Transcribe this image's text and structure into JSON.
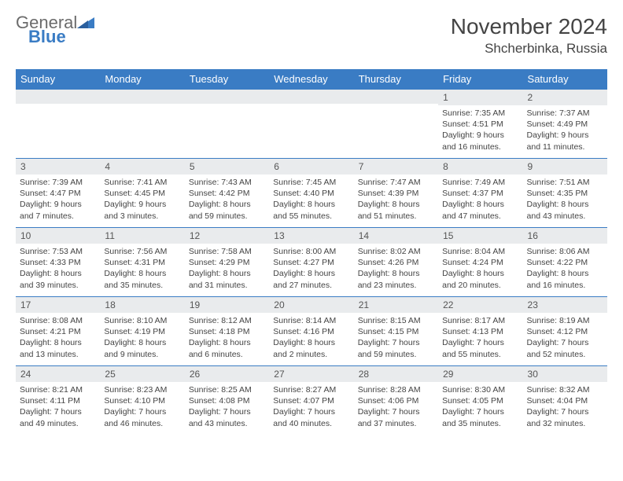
{
  "brand": {
    "word1": "General",
    "word2": "Blue"
  },
  "title": "November 2024",
  "location": "Shcherbinka, Russia",
  "colors": {
    "header_bg": "#3a7cc4",
    "header_text": "#ffffff",
    "daynum_bg": "#e9ebed",
    "border": "#3a7cc4",
    "logo_gray": "#6b6b6b",
    "logo_blue": "#3a7cc4"
  },
  "day_headers": [
    "Sunday",
    "Monday",
    "Tuesday",
    "Wednesday",
    "Thursday",
    "Friday",
    "Saturday"
  ],
  "weeks": [
    [
      {
        "n": "",
        "lines": []
      },
      {
        "n": "",
        "lines": []
      },
      {
        "n": "",
        "lines": []
      },
      {
        "n": "",
        "lines": []
      },
      {
        "n": "",
        "lines": []
      },
      {
        "n": "1",
        "lines": [
          "Sunrise: 7:35 AM",
          "Sunset: 4:51 PM",
          "Daylight: 9 hours",
          "and 16 minutes."
        ]
      },
      {
        "n": "2",
        "lines": [
          "Sunrise: 7:37 AM",
          "Sunset: 4:49 PM",
          "Daylight: 9 hours",
          "and 11 minutes."
        ]
      }
    ],
    [
      {
        "n": "3",
        "lines": [
          "Sunrise: 7:39 AM",
          "Sunset: 4:47 PM",
          "Daylight: 9 hours",
          "and 7 minutes."
        ]
      },
      {
        "n": "4",
        "lines": [
          "Sunrise: 7:41 AM",
          "Sunset: 4:45 PM",
          "Daylight: 9 hours",
          "and 3 minutes."
        ]
      },
      {
        "n": "5",
        "lines": [
          "Sunrise: 7:43 AM",
          "Sunset: 4:42 PM",
          "Daylight: 8 hours",
          "and 59 minutes."
        ]
      },
      {
        "n": "6",
        "lines": [
          "Sunrise: 7:45 AM",
          "Sunset: 4:40 PM",
          "Daylight: 8 hours",
          "and 55 minutes."
        ]
      },
      {
        "n": "7",
        "lines": [
          "Sunrise: 7:47 AM",
          "Sunset: 4:39 PM",
          "Daylight: 8 hours",
          "and 51 minutes."
        ]
      },
      {
        "n": "8",
        "lines": [
          "Sunrise: 7:49 AM",
          "Sunset: 4:37 PM",
          "Daylight: 8 hours",
          "and 47 minutes."
        ]
      },
      {
        "n": "9",
        "lines": [
          "Sunrise: 7:51 AM",
          "Sunset: 4:35 PM",
          "Daylight: 8 hours",
          "and 43 minutes."
        ]
      }
    ],
    [
      {
        "n": "10",
        "lines": [
          "Sunrise: 7:53 AM",
          "Sunset: 4:33 PM",
          "Daylight: 8 hours",
          "and 39 minutes."
        ]
      },
      {
        "n": "11",
        "lines": [
          "Sunrise: 7:56 AM",
          "Sunset: 4:31 PM",
          "Daylight: 8 hours",
          "and 35 minutes."
        ]
      },
      {
        "n": "12",
        "lines": [
          "Sunrise: 7:58 AM",
          "Sunset: 4:29 PM",
          "Daylight: 8 hours",
          "and 31 minutes."
        ]
      },
      {
        "n": "13",
        "lines": [
          "Sunrise: 8:00 AM",
          "Sunset: 4:27 PM",
          "Daylight: 8 hours",
          "and 27 minutes."
        ]
      },
      {
        "n": "14",
        "lines": [
          "Sunrise: 8:02 AM",
          "Sunset: 4:26 PM",
          "Daylight: 8 hours",
          "and 23 minutes."
        ]
      },
      {
        "n": "15",
        "lines": [
          "Sunrise: 8:04 AM",
          "Sunset: 4:24 PM",
          "Daylight: 8 hours",
          "and 20 minutes."
        ]
      },
      {
        "n": "16",
        "lines": [
          "Sunrise: 8:06 AM",
          "Sunset: 4:22 PM",
          "Daylight: 8 hours",
          "and 16 minutes."
        ]
      }
    ],
    [
      {
        "n": "17",
        "lines": [
          "Sunrise: 8:08 AM",
          "Sunset: 4:21 PM",
          "Daylight: 8 hours",
          "and 13 minutes."
        ]
      },
      {
        "n": "18",
        "lines": [
          "Sunrise: 8:10 AM",
          "Sunset: 4:19 PM",
          "Daylight: 8 hours",
          "and 9 minutes."
        ]
      },
      {
        "n": "19",
        "lines": [
          "Sunrise: 8:12 AM",
          "Sunset: 4:18 PM",
          "Daylight: 8 hours",
          "and 6 minutes."
        ]
      },
      {
        "n": "20",
        "lines": [
          "Sunrise: 8:14 AM",
          "Sunset: 4:16 PM",
          "Daylight: 8 hours",
          "and 2 minutes."
        ]
      },
      {
        "n": "21",
        "lines": [
          "Sunrise: 8:15 AM",
          "Sunset: 4:15 PM",
          "Daylight: 7 hours",
          "and 59 minutes."
        ]
      },
      {
        "n": "22",
        "lines": [
          "Sunrise: 8:17 AM",
          "Sunset: 4:13 PM",
          "Daylight: 7 hours",
          "and 55 minutes."
        ]
      },
      {
        "n": "23",
        "lines": [
          "Sunrise: 8:19 AM",
          "Sunset: 4:12 PM",
          "Daylight: 7 hours",
          "and 52 minutes."
        ]
      }
    ],
    [
      {
        "n": "24",
        "lines": [
          "Sunrise: 8:21 AM",
          "Sunset: 4:11 PM",
          "Daylight: 7 hours",
          "and 49 minutes."
        ]
      },
      {
        "n": "25",
        "lines": [
          "Sunrise: 8:23 AM",
          "Sunset: 4:10 PM",
          "Daylight: 7 hours",
          "and 46 minutes."
        ]
      },
      {
        "n": "26",
        "lines": [
          "Sunrise: 8:25 AM",
          "Sunset: 4:08 PM",
          "Daylight: 7 hours",
          "and 43 minutes."
        ]
      },
      {
        "n": "27",
        "lines": [
          "Sunrise: 8:27 AM",
          "Sunset: 4:07 PM",
          "Daylight: 7 hours",
          "and 40 minutes."
        ]
      },
      {
        "n": "28",
        "lines": [
          "Sunrise: 8:28 AM",
          "Sunset: 4:06 PM",
          "Daylight: 7 hours",
          "and 37 minutes."
        ]
      },
      {
        "n": "29",
        "lines": [
          "Sunrise: 8:30 AM",
          "Sunset: 4:05 PM",
          "Daylight: 7 hours",
          "and 35 minutes."
        ]
      },
      {
        "n": "30",
        "lines": [
          "Sunrise: 8:32 AM",
          "Sunset: 4:04 PM",
          "Daylight: 7 hours",
          "and 32 minutes."
        ]
      }
    ]
  ]
}
